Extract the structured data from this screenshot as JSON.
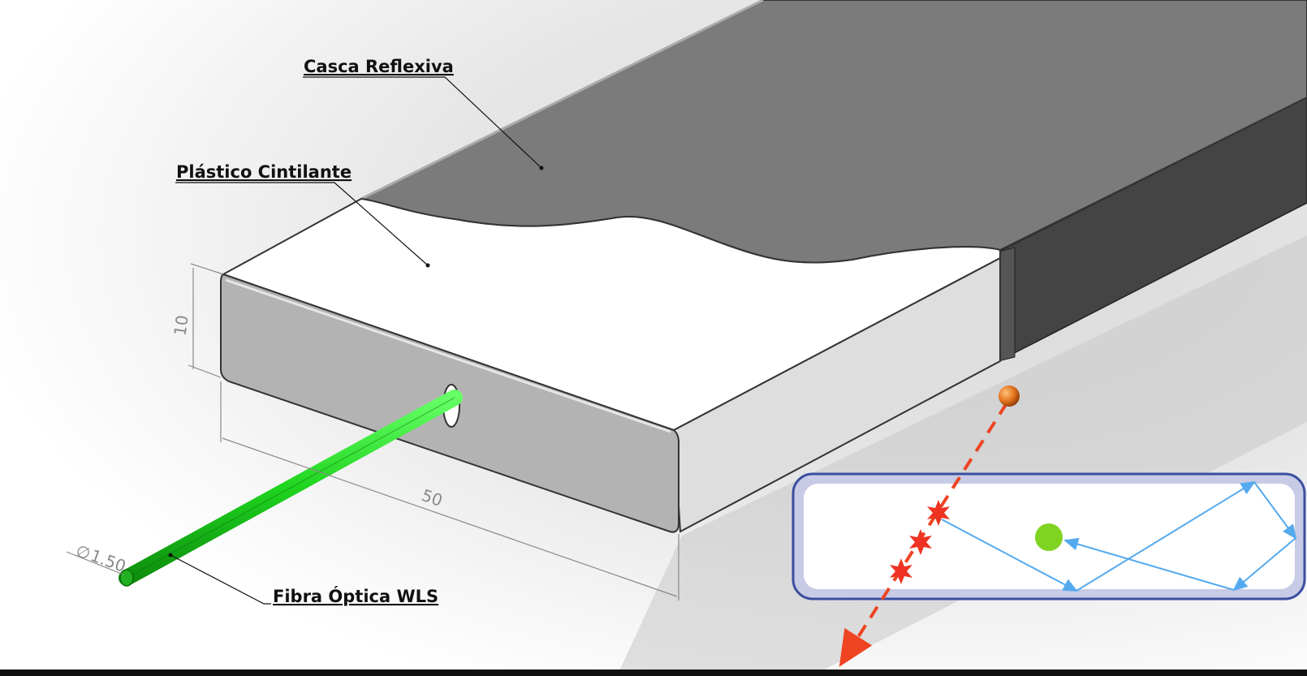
{
  "labels": {
    "reflective_shell": "Casca Reflexiva",
    "scintillator": "Plástico Cintilante",
    "fiber": "Fibra Óptica WLS"
  },
  "dimensions": {
    "height": "10",
    "width": "50",
    "fiber_diameter": "1.50",
    "diameter_symbol": "∅"
  },
  "colors": {
    "shell_top": "#7b7b7b",
    "shell_side": "#444444",
    "scintillator_top": "#ffffff",
    "scintillator_face": "#b3b3b3",
    "fiber": "#22d622",
    "particle": "#e0701a",
    "particle_track": "#ee4422",
    "light_rays": "#55aaee",
    "inset_border": "#3a4fa0",
    "inset_fill": "#c8cbe6"
  }
}
